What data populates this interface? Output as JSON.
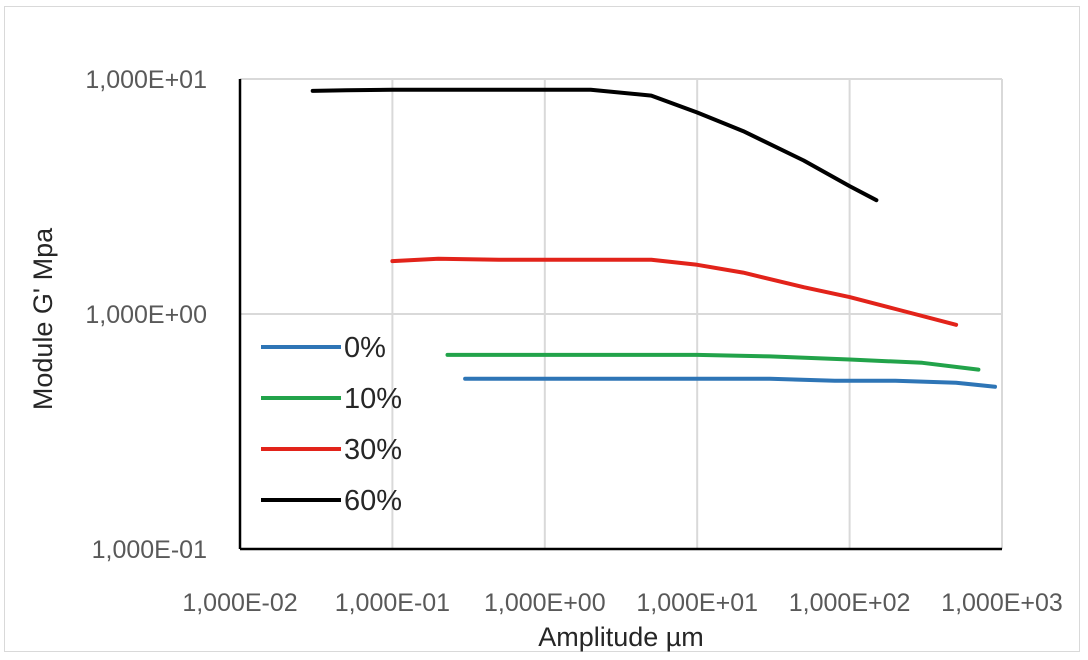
{
  "chart_data": {
    "type": "line",
    "xlabel": "Amplitude µm",
    "ylabel": "Module G' Mpa",
    "x_scale": "log",
    "y_scale": "log",
    "xlim": [
      0.01,
      1000
    ],
    "ylim": [
      0.1,
      10
    ],
    "grid": true,
    "legend_position": "left",
    "x_ticks": [
      0.01,
      0.1,
      1,
      10,
      100,
      1000
    ],
    "x_tick_labels": [
      "1,000E-02",
      "1,000E-01",
      "1,000E+00",
      "1,000E+01",
      "1,000E+02",
      "1,000E+03"
    ],
    "y_ticks": [
      0.1,
      1,
      10
    ],
    "y_tick_labels": [
      "1,000E-01",
      "1,000E+00",
      "1,000E+01"
    ],
    "series": [
      {
        "name": "0%",
        "color": "#2e75b6",
        "x": [
          0.3,
          1,
          10,
          30,
          80,
          200,
          500,
          900
        ],
        "y": [
          0.53,
          0.53,
          0.53,
          0.53,
          0.52,
          0.52,
          0.51,
          0.49
        ]
      },
      {
        "name": "10%",
        "color": "#22a34a",
        "x": [
          0.23,
          0.5,
          1,
          10,
          30,
          100,
          300,
          700
        ],
        "y": [
          0.67,
          0.67,
          0.67,
          0.67,
          0.66,
          0.64,
          0.62,
          0.58
        ]
      },
      {
        "name": "30%",
        "color": "#e2231a",
        "x": [
          0.1,
          0.2,
          0.5,
          1,
          5,
          10,
          20,
          50,
          100,
          200,
          500
        ],
        "y": [
          1.68,
          1.72,
          1.7,
          1.7,
          1.7,
          1.62,
          1.5,
          1.3,
          1.18,
          1.05,
          0.9
        ]
      },
      {
        "name": "60%",
        "color": "#000000",
        "x": [
          0.03,
          0.05,
          0.1,
          0.2,
          0.5,
          1,
          2,
          5,
          10,
          20,
          50,
          100,
          150
        ],
        "y": [
          8.9,
          8.95,
          9.0,
          9.0,
          9.0,
          9.0,
          9.0,
          8.5,
          7.2,
          6.0,
          4.5,
          3.5,
          3.05
        ]
      }
    ]
  }
}
